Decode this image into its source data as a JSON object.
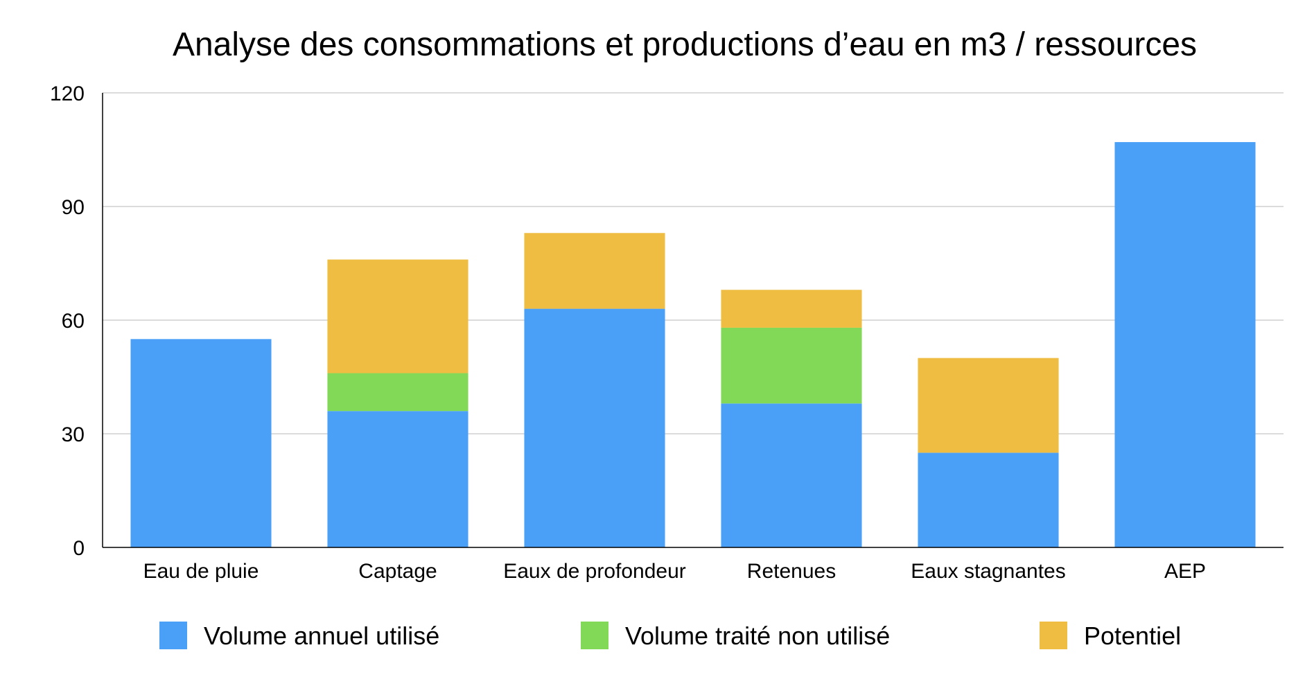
{
  "chart_data": {
    "type": "bar",
    "stacked": true,
    "title": "Analyse des consommations et productions d’eau en m3 / ressources",
    "xlabel": "",
    "ylabel": "",
    "ylim": [
      0,
      120
    ],
    "yticks": [
      0,
      30,
      60,
      90,
      120
    ],
    "grid": true,
    "legend_position": "bottom",
    "categories": [
      "Eau de pluie",
      "Captage",
      "Eaux de profondeur",
      "Retenues",
      "Eaux stagnantes",
      "AEP"
    ],
    "series": [
      {
        "name": "Volume annuel utilisé",
        "color": "#4aa0f7",
        "values": [
          55,
          36,
          63,
          38,
          25,
          107
        ]
      },
      {
        "name": "Volume traité non utilisé",
        "color": "#82d857",
        "values": [
          0,
          10,
          0,
          20,
          0,
          0
        ]
      },
      {
        "name": "Potentiel",
        "color": "#eebd41",
        "values": [
          0,
          30,
          20,
          10,
          25,
          0
        ]
      }
    ]
  }
}
